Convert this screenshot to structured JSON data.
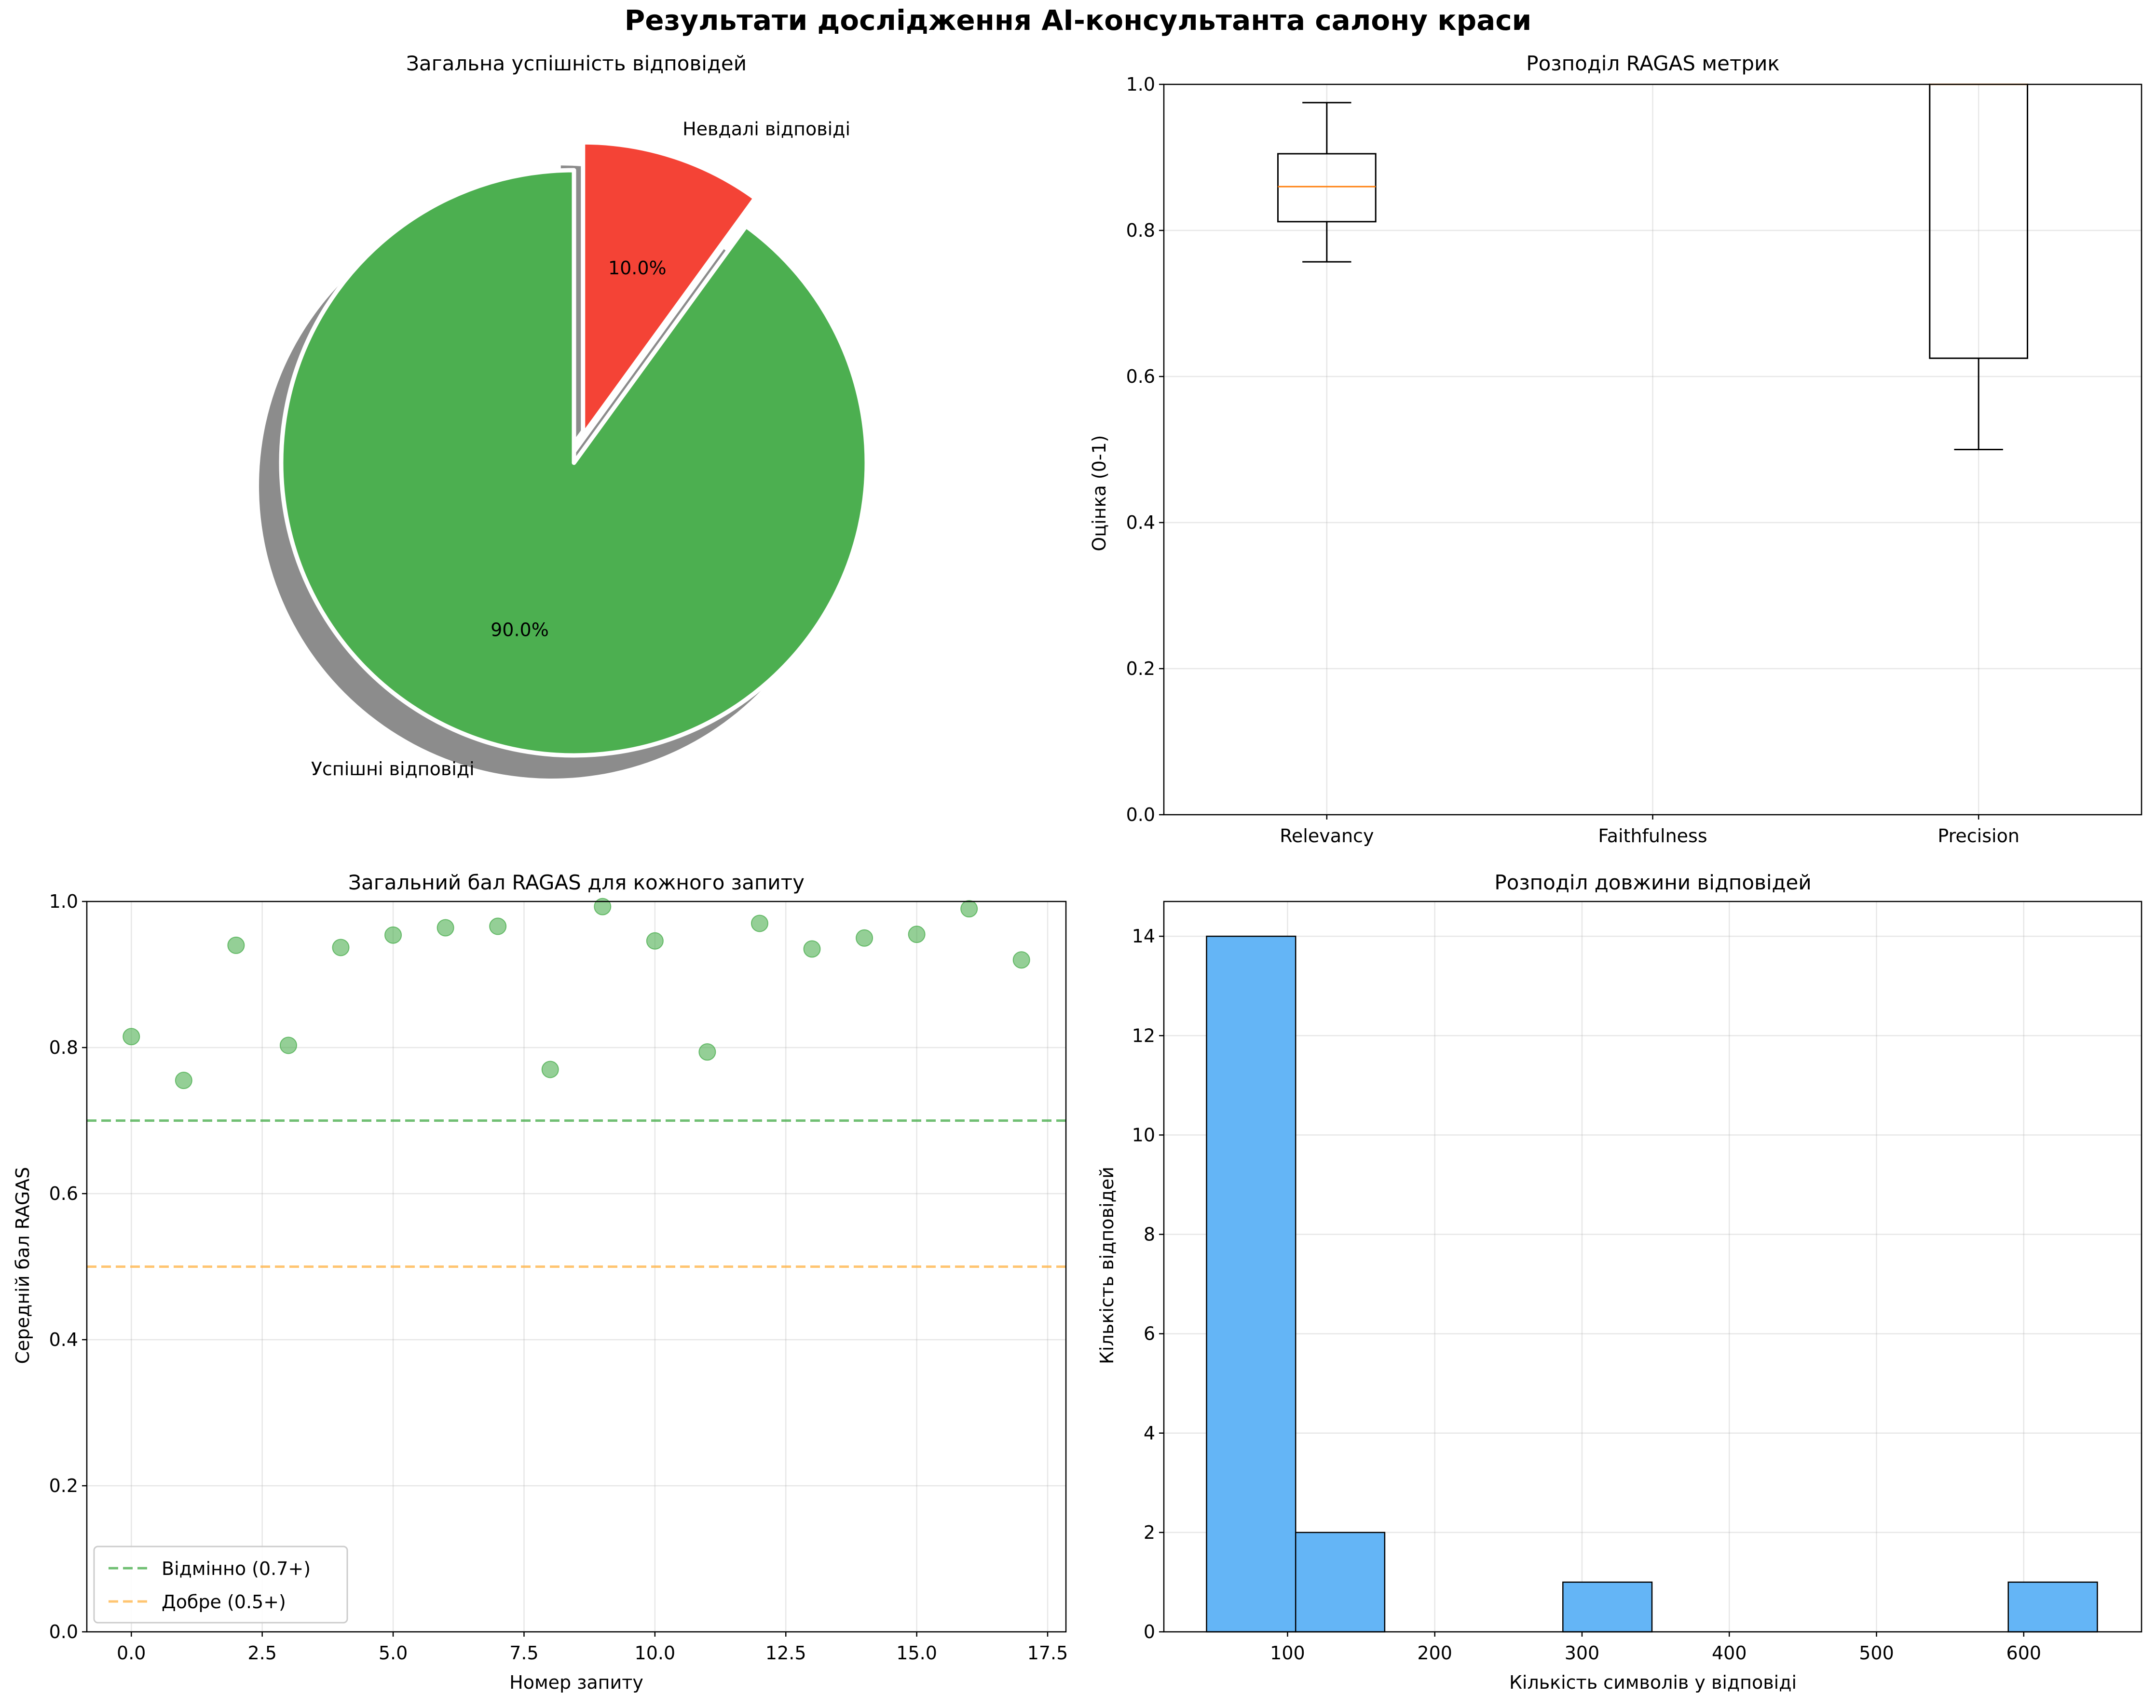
{
  "figure": {
    "suptitle": "Результати дослідження AI-консультанта салону краси"
  },
  "chart_data": [
    {
      "type": "pie",
      "title": "Загальна успішність відповідей",
      "labels": [
        "Успішні відповіді",
        "Невдалі відповіді"
      ],
      "values": [
        90.0,
        10.0
      ],
      "value_labels": [
        "90.0%",
        "10.0%"
      ],
      "colors": [
        "#4caf50",
        "#f44336"
      ],
      "explode": [
        0,
        0.1
      ],
      "shadow": true,
      "start_angle_deg": 90
    },
    {
      "type": "box",
      "title": "Розподіл RAGAS метрик",
      "xlabel": "",
      "ylabel": "Оцінка (0-1)",
      "ylim": [
        0,
        1.0
      ],
      "yticks": [
        0.0,
        0.2,
        0.4,
        0.6,
        0.8,
        1.0
      ],
      "ytick_labels": [
        "0.0",
        "0.2",
        "0.4",
        "0.6",
        "0.8",
        "1.0"
      ],
      "grid": true,
      "categories": [
        "Relevancy",
        "Faithfulness",
        "Precision"
      ],
      "boxes": [
        {
          "category": "Relevancy",
          "whisker_low": 0.757,
          "q1": 0.812,
          "median": 0.86,
          "q3": 0.905,
          "whisker_high": 0.975
        },
        {
          "category": "Faithfulness",
          "whisker_low": null,
          "q1": null,
          "median": null,
          "q3": null,
          "whisker_high": null
        },
        {
          "category": "Precision",
          "whisker_low": 0.5,
          "q1": 0.625,
          "median": 1.0,
          "q3": 1.0,
          "whisker_high": 1.0
        }
      ]
    },
    {
      "type": "scatter",
      "title": "Загальний бал RAGAS для кожного запиту",
      "xlabel": "Номер запиту",
      "ylabel": "Середній бал RAGAS",
      "xlim": [
        -0.85,
        17.85
      ],
      "ylim": [
        0,
        1.0
      ],
      "xticks": [
        0,
        2.5,
        5,
        7.5,
        10,
        12.5,
        15,
        17.5
      ],
      "xtick_labels": [
        "0.0",
        "2.5",
        "5.0",
        "7.5",
        "10.0",
        "12.5",
        "15.0",
        "17.5"
      ],
      "yticks": [
        0.0,
        0.2,
        0.4,
        0.6,
        0.8,
        1.0
      ],
      "ytick_labels": [
        "0.0",
        "0.2",
        "0.4",
        "0.6",
        "0.8",
        "1.0"
      ],
      "grid": true,
      "point_color": "#4caf50",
      "x": [
        0,
        1,
        2,
        3,
        4,
        5,
        6,
        7,
        8,
        9,
        10,
        11,
        12,
        13,
        14,
        15,
        16,
        17
      ],
      "y": [
        0.815,
        0.755,
        0.94,
        0.803,
        0.937,
        0.954,
        0.964,
        0.966,
        0.77,
        0.993,
        0.946,
        0.794,
        0.97,
        0.935,
        0.95,
        0.955,
        0.99,
        0.92
      ],
      "reference_lines": [
        {
          "name": "Відмінно (0.7+)",
          "y": 0.7,
          "color": "#4caf50",
          "style": "dashed"
        },
        {
          "name": "Добре (0.5+)",
          "y": 0.5,
          "color": "#ffb74d",
          "style": "dashed"
        }
      ],
      "legend_position": "lower-left"
    },
    {
      "type": "bar",
      "subtype": "histogram",
      "title": "Розподіл довжини відповідей",
      "xlabel": "Кількість символів у відповіді",
      "ylabel": "Кількість відповідей",
      "xlim": [
        16,
        680
      ],
      "ylim": [
        0,
        14.7
      ],
      "xticks": [
        100,
        200,
        300,
        400,
        500,
        600
      ],
      "xtick_labels": [
        "100",
        "200",
        "300",
        "400",
        "500",
        "600"
      ],
      "yticks": [
        0,
        2,
        4,
        6,
        8,
        10,
        12,
        14
      ],
      "ytick_labels": [
        "0",
        "2",
        "4",
        "6",
        "8",
        "10",
        "12",
        "14"
      ],
      "grid": true,
      "bar_color": "#64b5f6",
      "bins": [
        {
          "from": 45,
          "to": 105.5,
          "count": 14
        },
        {
          "from": 105.5,
          "to": 166,
          "count": 2
        },
        {
          "from": 166,
          "to": 226.5,
          "count": 0
        },
        {
          "from": 226.5,
          "to": 287,
          "count": 0
        },
        {
          "from": 287,
          "to": 347.5,
          "count": 1
        },
        {
          "from": 347.5,
          "to": 408,
          "count": 0
        },
        {
          "from": 408,
          "to": 468.5,
          "count": 0
        },
        {
          "from": 468.5,
          "to": 529,
          "count": 0
        },
        {
          "from": 529,
          "to": 589.5,
          "count": 0
        },
        {
          "from": 589.5,
          "to": 650,
          "count": 1
        }
      ]
    }
  ]
}
